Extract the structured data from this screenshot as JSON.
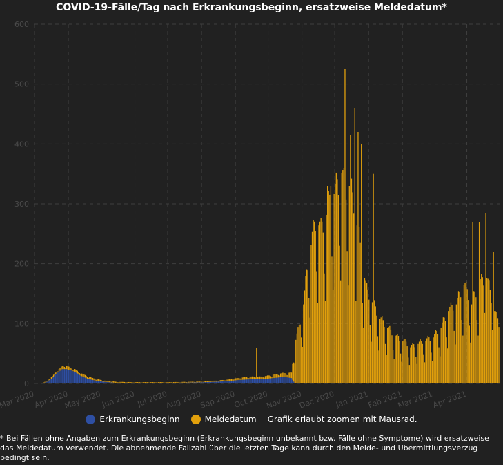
{
  "chart_data": {
    "type": "bar",
    "title": "COVID-19-Fälle/Tag nach Erkrankungsbeginn, ersatzweise Meldedatum*",
    "xlabel": "",
    "ylabel": "",
    "ylim": [
      0,
      600
    ],
    "y_ticks": [
      "0",
      "100",
      "200",
      "300",
      "400",
      "500",
      "600"
    ],
    "x_ticks": [
      "Mar 2020",
      "Apr 2020",
      "May 2020",
      "Jun 2020",
      "Jul 2020",
      "Aug 2020",
      "Sep 2020",
      "Oct 2020",
      "Nov 2020",
      "Dec 2020",
      "Jan 2021",
      "Feb 2021",
      "Mar 2021",
      "Apr 2021"
    ],
    "stacked": true,
    "grid": true,
    "legend_position": "bottom",
    "series": [
      {
        "name": "Erkrankungsbeginn",
        "color": "#2e4fa3",
        "keypoints": [
          [
            "2020-03-01",
            0
          ],
          [
            "2020-03-08",
            0
          ],
          [
            "2020-03-12",
            3
          ],
          [
            "2020-03-16",
            8
          ],
          [
            "2020-03-20",
            15
          ],
          [
            "2020-03-23",
            20
          ],
          [
            "2020-03-26",
            24
          ],
          [
            "2020-03-30",
            24
          ],
          [
            "2020-04-03",
            22
          ],
          [
            "2020-04-07",
            19
          ],
          [
            "2020-04-12",
            13
          ],
          [
            "2020-04-18",
            8
          ],
          [
            "2020-04-25",
            5
          ],
          [
            "2020-05-02",
            3
          ],
          [
            "2020-05-15",
            1
          ],
          [
            "2020-06-01",
            1
          ],
          [
            "2020-07-01",
            1
          ],
          [
            "2020-08-01",
            2
          ],
          [
            "2020-08-15",
            3
          ],
          [
            "2020-08-25",
            4
          ],
          [
            "2020-09-05",
            6
          ],
          [
            "2020-09-15",
            7
          ],
          [
            "2020-09-25",
            7
          ],
          [
            "2020-10-05",
            9
          ],
          [
            "2020-10-15",
            11
          ],
          [
            "2020-10-22",
            9
          ],
          [
            "2020-10-25",
            0
          ],
          [
            "2021-04-30",
            0
          ]
        ]
      },
      {
        "name": "Meldedatum",
        "color": "#e2a00c",
        "keypoints": [
          [
            "2020-03-01",
            0
          ],
          [
            "2020-03-10",
            1
          ],
          [
            "2020-03-20",
            3
          ],
          [
            "2020-03-28",
            5
          ],
          [
            "2020-04-05",
            4
          ],
          [
            "2020-04-15",
            4
          ],
          [
            "2020-05-01",
            2
          ],
          [
            "2020-06-01",
            1
          ],
          [
            "2020-07-01",
            1
          ],
          [
            "2020-08-01",
            1
          ],
          [
            "2020-08-20",
            2
          ],
          [
            "2020-09-01",
            3
          ],
          [
            "2020-09-15",
            4
          ],
          [
            "2020-09-25",
            4
          ],
          [
            "2020-10-05",
            5
          ],
          [
            "2020-10-15",
            6
          ],
          [
            "2020-10-22",
            8
          ],
          [
            "2020-10-25",
            60
          ],
          [
            "2020-10-29",
            85
          ],
          [
            "2020-11-02",
            120
          ],
          [
            "2020-11-06",
            180
          ],
          [
            "2020-11-10",
            220
          ],
          [
            "2020-11-14",
            250
          ],
          [
            "2020-11-18",
            230
          ],
          [
            "2020-11-22",
            250
          ],
          [
            "2020-11-27",
            280
          ],
          [
            "2020-12-01",
            290
          ],
          [
            "2020-12-04",
            300
          ],
          [
            "2020-12-07",
            320
          ],
          [
            "2020-12-10",
            290
          ],
          [
            "2020-12-14",
            300
          ],
          [
            "2020-12-18",
            270
          ],
          [
            "2020-12-22",
            230
          ],
          [
            "2020-12-26",
            180
          ],
          [
            "2020-12-30",
            140
          ],
          [
            "2021-01-05",
            120
          ],
          [
            "2021-01-10",
            100
          ],
          [
            "2021-01-15",
            90
          ],
          [
            "2021-01-20",
            80
          ],
          [
            "2021-01-26",
            70
          ],
          [
            "2021-02-01",
            65
          ],
          [
            "2021-02-08",
            55
          ],
          [
            "2021-02-15",
            60
          ],
          [
            "2021-02-22",
            65
          ],
          [
            "2021-03-01",
            70
          ],
          [
            "2021-03-08",
            85
          ],
          [
            "2021-03-15",
            110
          ],
          [
            "2021-03-22",
            120
          ],
          [
            "2021-03-29",
            150
          ],
          [
            "2021-04-05",
            120
          ],
          [
            "2021-04-12",
            150
          ],
          [
            "2021-04-19",
            160
          ],
          [
            "2021-04-24",
            120
          ],
          [
            "2021-04-30",
            90
          ]
        ]
      }
    ],
    "peaks": [
      [
        "2020-09-20",
        "Meldedatum",
        52
      ],
      [
        "2020-12-10",
        "Meldedatum",
        525
      ],
      [
        "2020-12-19",
        "Meldedatum",
        460
      ],
      [
        "2020-12-22",
        "Meldedatum",
        420
      ],
      [
        "2020-12-25",
        "Meldedatum",
        400
      ],
      [
        "2020-12-15",
        "Meldedatum",
        415
      ],
      [
        "2020-11-24",
        "Meldedatum",
        330
      ],
      [
        "2020-11-27",
        "Meldedatum",
        330
      ],
      [
        "2021-01-05",
        "Meldedatum",
        350
      ],
      [
        "2021-04-18",
        "Meldedatum",
        285
      ],
      [
        "2021-04-12",
        "Meldedatum",
        270
      ],
      [
        "2021-04-06",
        "Meldedatum",
        270
      ],
      [
        "2021-04-25",
        "Meldedatum",
        220
      ]
    ]
  },
  "legend": {
    "items": [
      {
        "label": "Erkrankungsbeginn",
        "color": "#2e4fa3"
      },
      {
        "label": "Meldedatum",
        "color": "#e2a00c"
      }
    ],
    "note": "Grafik erlaubt zoomen mit Mausrad."
  },
  "footnote": "* Bei Fällen ohne Angaben zum Erkrankungsbeginn (Erkrankungsbeginn unbekannt bzw. Fälle ohne Symptome) wird ersatzweise das Meldedatum verwendet. Die abnehmende Fallzahl über die letzten Tage kann durch den Melde- und Übermittlungsverzug bedingt sein."
}
